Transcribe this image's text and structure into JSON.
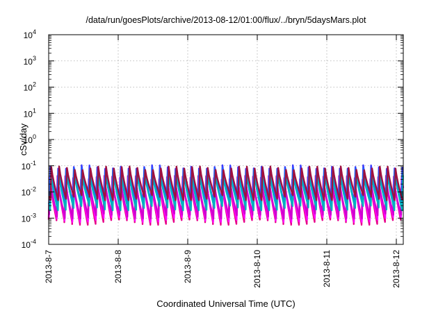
{
  "chart_data": {
    "type": "line",
    "title": "/data/run/goesPlots/archive/2013-08-12/01:00/flux/../bryn/5daysMars.plot",
    "xlabel": "Coordinated Universal Time (UTC)",
    "ylabel": "cSv/day",
    "yscale": "log",
    "ylim_exp": [
      -4,
      4
    ],
    "xlim_days": [
      0,
      5.1
    ],
    "grid": true,
    "x_ticks": [
      {
        "label": "2013-8-7",
        "day": 0
      },
      {
        "label": "2013-8-8",
        "day": 1
      },
      {
        "label": "2013-8-9",
        "day": 2
      },
      {
        "label": "2013-8-10",
        "day": 3
      },
      {
        "label": "2013-8-11",
        "day": 4
      },
      {
        "label": "2013-8-12",
        "day": 5
      }
    ],
    "y_ticks": [
      {
        "base": "10",
        "exp": "-4",
        "value": -4
      },
      {
        "base": "10",
        "exp": "-3",
        "value": -3
      },
      {
        "base": "10",
        "exp": "-2",
        "value": -2
      },
      {
        "base": "10",
        "exp": "-1",
        "value": -1
      },
      {
        "base": "10",
        "exp": "0",
        "value": 0
      },
      {
        "base": "10",
        "exp": "1",
        "value": 1
      },
      {
        "base": "10",
        "exp": "2",
        "value": 2
      },
      {
        "base": "10",
        "exp": "3",
        "value": 3
      },
      {
        "base": "10",
        "exp": "4",
        "value": 4
      }
    ],
    "sawtooth_period_days": 0.1125,
    "series": [
      {
        "color": "#e8008a",
        "peak": 0.035,
        "trough": 0.0007
      },
      {
        "color": "#ff00ff",
        "peak": 0.03,
        "trough": 0.0009
      },
      {
        "color": "#d000d0",
        "peak": 0.025,
        "trough": 0.0012
      },
      {
        "color": "#3c3cff",
        "peak": 0.09,
        "trough": 0.005
      },
      {
        "color": "#2060ff",
        "peak": 0.07,
        "trough": 0.004
      },
      {
        "color": "#0090e0",
        "peak": 0.055,
        "trough": 0.003
      },
      {
        "color": "#00b0c0",
        "peak": 0.045,
        "trough": 0.0025
      },
      {
        "color": "#a01040",
        "peak": 0.08,
        "trough": 0.006
      }
    ]
  }
}
